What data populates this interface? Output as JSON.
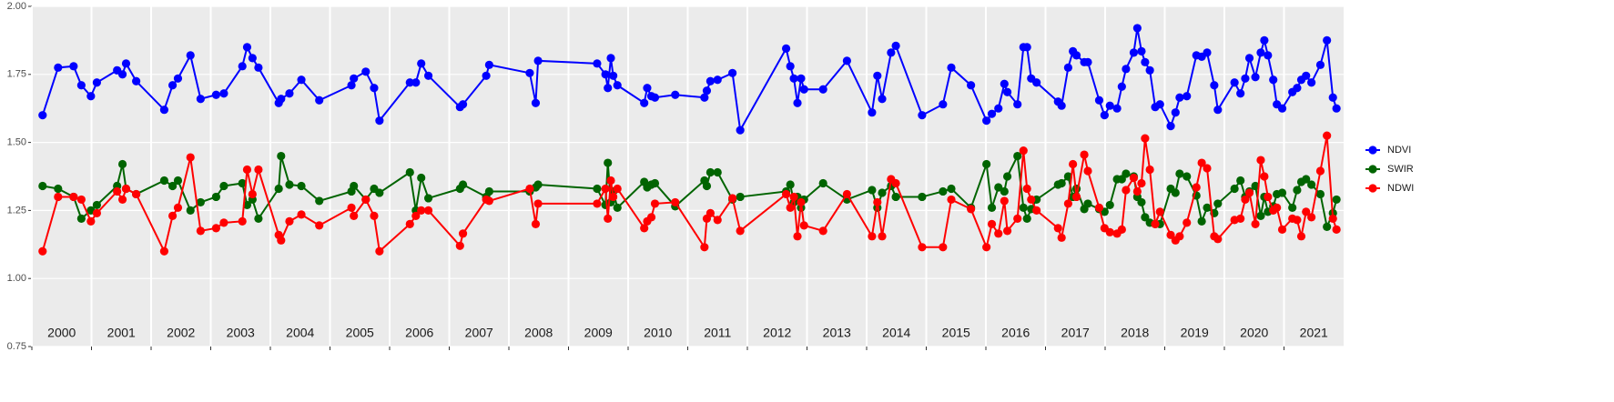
{
  "chart_data": {
    "type": "line",
    "x": [
      2000.18,
      2000.44,
      2000.7,
      2000.83,
      2000.99,
      2001.09,
      2001.43,
      2001.52,
      2001.58,
      2001.75,
      2002.22,
      2002.36,
      2002.45,
      2002.66,
      2002.83,
      2003.09,
      2003.22,
      2003.53,
      2003.61,
      2003.7,
      2003.8,
      2004.14,
      2004.18,
      2004.32,
      2004.52,
      2004.82,
      2005.36,
      2005.4,
      2005.6,
      2005.74,
      2005.83,
      2006.34,
      2006.44,
      2006.53,
      2006.65,
      2007.18,
      2007.23,
      2007.62,
      2007.67,
      2008.35,
      2008.45,
      2008.49,
      2009.48,
      2009.62,
      2009.66,
      2009.71,
      2009.75,
      2009.82,
      2010.27,
      2010.32,
      2010.39,
      2010.45,
      2010.79,
      2011.28,
      2011.32,
      2011.38,
      2011.5,
      2011.75,
      2011.88,
      2012.65,
      2012.72,
      2012.78,
      2012.84,
      2012.9,
      2012.95,
      2013.27,
      2013.67,
      2014.09,
      2014.18,
      2014.26,
      2014.41,
      2014.49,
      2014.93,
      2015.28,
      2015.42,
      2015.75,
      2016.01,
      2016.1,
      2016.21,
      2016.31,
      2016.36,
      2016.53,
      2016.63,
      2016.69,
      2016.76,
      2016.85,
      2017.21,
      2017.27,
      2017.38,
      2017.46,
      2017.52,
      2017.65,
      2017.71,
      2017.9,
      2017.99,
      2018.08,
      2018.2,
      2018.28,
      2018.35,
      2018.48,
      2018.54,
      2018.61,
      2018.67,
      2018.75,
      2018.84,
      2018.92,
      2019.1,
      2019.18,
      2019.25,
      2019.37,
      2019.53,
      2019.62,
      2019.71,
      2019.83,
      2019.89,
      2020.17,
      2020.27,
      2020.35,
      2020.42,
      2020.52,
      2020.61,
      2020.67,
      2020.73,
      2020.82,
      2020.88,
      2020.97,
      2021.14,
      2021.22,
      2021.29,
      2021.37,
      2021.46,
      2021.61,
      2021.72,
      2021.82,
      2021.88
    ],
    "series": [
      {
        "name": "NDVI",
        "color": "#0000ff",
        "values": [
          1.6,
          1.775,
          1.78,
          1.71,
          1.67,
          1.72,
          1.765,
          1.75,
          1.79,
          1.725,
          1.62,
          1.71,
          1.735,
          1.82,
          1.66,
          1.675,
          1.68,
          1.78,
          1.85,
          1.81,
          1.775,
          1.645,
          1.66,
          1.68,
          1.73,
          1.655,
          1.71,
          1.735,
          1.76,
          1.7,
          1.58,
          1.72,
          1.72,
          1.79,
          1.745,
          1.63,
          1.64,
          1.745,
          1.785,
          1.755,
          1.645,
          1.8,
          1.79,
          1.75,
          1.7,
          1.81,
          1.745,
          1.71,
          1.645,
          1.7,
          1.67,
          1.665,
          1.675,
          1.665,
          1.69,
          1.725,
          1.73,
          1.755,
          1.545,
          1.845,
          1.78,
          1.735,
          1.645,
          1.735,
          1.695,
          1.695,
          1.8,
          1.61,
          1.745,
          1.66,
          1.83,
          1.855,
          1.6,
          1.64,
          1.775,
          1.71,
          1.58,
          1.605,
          1.625,
          1.715,
          1.685,
          1.64,
          1.85,
          1.85,
          1.735,
          1.72,
          1.65,
          1.635,
          1.775,
          1.835,
          1.82,
          1.795,
          1.795,
          1.655,
          1.6,
          1.635,
          1.625,
          1.705,
          1.77,
          1.83,
          1.92,
          1.835,
          1.795,
          1.765,
          1.63,
          1.64,
          1.56,
          1.61,
          1.665,
          1.67,
          1.82,
          1.815,
          1.83,
          1.71,
          1.62,
          1.72,
          1.68,
          1.735,
          1.81,
          1.74,
          1.83,
          1.875,
          1.82,
          1.73,
          1.64,
          1.625,
          1.685,
          1.7,
          1.73,
          1.745,
          1.72,
          1.785,
          1.875,
          1.665,
          1.625
        ]
      },
      {
        "name": "SWIR",
        "color": "#006400",
        "values": [
          1.34,
          1.33,
          1.3,
          1.22,
          1.25,
          1.27,
          1.34,
          1.42,
          1.33,
          1.31,
          1.36,
          1.34,
          1.36,
          1.25,
          1.28,
          1.3,
          1.34,
          1.35,
          1.27,
          1.29,
          1.22,
          1.33,
          1.45,
          1.345,
          1.34,
          1.285,
          1.32,
          1.34,
          1.29,
          1.33,
          1.315,
          1.39,
          1.25,
          1.37,
          1.295,
          1.33,
          1.345,
          1.3,
          1.32,
          1.32,
          1.335,
          1.345,
          1.33,
          1.27,
          1.425,
          1.28,
          1.32,
          1.26,
          1.355,
          1.335,
          1.345,
          1.35,
          1.265,
          1.36,
          1.34,
          1.39,
          1.39,
          1.29,
          1.3,
          1.32,
          1.345,
          1.28,
          1.3,
          1.26,
          1.29,
          1.35,
          1.29,
          1.325,
          1.26,
          1.315,
          1.34,
          1.3,
          1.3,
          1.32,
          1.33,
          1.26,
          1.42,
          1.26,
          1.335,
          1.32,
          1.375,
          1.45,
          1.26,
          1.22,
          1.255,
          1.29,
          1.345,
          1.35,
          1.375,
          1.3,
          1.33,
          1.255,
          1.275,
          1.255,
          1.245,
          1.27,
          1.365,
          1.365,
          1.385,
          1.375,
          1.3,
          1.28,
          1.225,
          1.205,
          1.2,
          1.2,
          1.33,
          1.315,
          1.385,
          1.375,
          1.305,
          1.21,
          1.26,
          1.24,
          1.275,
          1.33,
          1.36,
          1.3,
          1.32,
          1.34,
          1.23,
          1.3,
          1.245,
          1.265,
          1.31,
          1.315,
          1.26,
          1.325,
          1.355,
          1.365,
          1.345,
          1.31,
          1.19,
          1.24,
          1.29
        ]
      },
      {
        "name": "NDWI",
        "color": "#ff0000",
        "values": [
          1.1,
          1.3,
          1.3,
          1.29,
          1.21,
          1.24,
          1.32,
          1.29,
          1.33,
          1.31,
          1.1,
          1.23,
          1.26,
          1.445,
          1.175,
          1.185,
          1.205,
          1.21,
          1.4,
          1.31,
          1.4,
          1.16,
          1.14,
          1.21,
          1.235,
          1.195,
          1.26,
          1.23,
          1.29,
          1.23,
          1.1,
          1.2,
          1.23,
          1.25,
          1.25,
          1.12,
          1.165,
          1.29,
          1.285,
          1.33,
          1.2,
          1.275,
          1.275,
          1.33,
          1.22,
          1.36,
          1.3,
          1.33,
          1.185,
          1.21,
          1.225,
          1.275,
          1.28,
          1.115,
          1.22,
          1.24,
          1.215,
          1.295,
          1.175,
          1.31,
          1.26,
          1.3,
          1.155,
          1.28,
          1.195,
          1.175,
          1.31,
          1.155,
          1.28,
          1.155,
          1.365,
          1.35,
          1.115,
          1.115,
          1.29,
          1.255,
          1.115,
          1.2,
          1.165,
          1.285,
          1.175,
          1.22,
          1.47,
          1.33,
          1.29,
          1.25,
          1.185,
          1.15,
          1.275,
          1.42,
          1.3,
          1.455,
          1.395,
          1.26,
          1.185,
          1.17,
          1.165,
          1.18,
          1.325,
          1.37,
          1.32,
          1.35,
          1.515,
          1.4,
          1.2,
          1.245,
          1.16,
          1.14,
          1.155,
          1.205,
          1.335,
          1.425,
          1.405,
          1.155,
          1.145,
          1.215,
          1.22,
          1.29,
          1.315,
          1.2,
          1.435,
          1.375,
          1.3,
          1.25,
          1.26,
          1.18,
          1.22,
          1.215,
          1.155,
          1.245,
          1.225,
          1.395,
          1.525,
          1.22,
          1.18
        ]
      }
    ],
    "xlim": [
      2000,
      2022
    ],
    "xticks": [
      2000,
      2001,
      2002,
      2003,
      2004,
      2005,
      2006,
      2007,
      2008,
      2009,
      2010,
      2011,
      2012,
      2013,
      2014,
      2015,
      2016,
      2017,
      2018,
      2019,
      2020,
      2021
    ],
    "year_labels": [
      {
        "value": 2000.5,
        "label": "2000"
      },
      {
        "value": 2001.5,
        "label": "2001"
      },
      {
        "value": 2002.5,
        "label": "2002"
      },
      {
        "value": 2003.5,
        "label": "2003"
      },
      {
        "value": 2004.5,
        "label": "2004"
      },
      {
        "value": 2005.5,
        "label": "2005"
      },
      {
        "value": 2006.5,
        "label": "2006"
      },
      {
        "value": 2007.5,
        "label": "2007"
      },
      {
        "value": 2008.5,
        "label": "2008"
      },
      {
        "value": 2009.5,
        "label": "2009"
      },
      {
        "value": 2010.5,
        "label": "2010"
      },
      {
        "value": 2011.5,
        "label": "2011"
      },
      {
        "value": 2012.5,
        "label": "2012"
      },
      {
        "value": 2013.5,
        "label": "2013"
      },
      {
        "value": 2014.5,
        "label": "2014"
      },
      {
        "value": 2015.5,
        "label": "2015"
      },
      {
        "value": 2016.5,
        "label": "2016"
      },
      {
        "value": 2017.5,
        "label": "2017"
      },
      {
        "value": 2018.5,
        "label": "2018"
      },
      {
        "value": 2019.5,
        "label": "2019"
      },
      {
        "value": 2020.5,
        "label": "2020"
      },
      {
        "value": 2021.5,
        "label": "2021"
      }
    ],
    "ylim": [
      0.75,
      2.0
    ],
    "yticks": [
      {
        "value": 0.75,
        "label": "0.75"
      },
      {
        "value": 1.0,
        "label": "1.00"
      },
      {
        "value": 1.25,
        "label": "1.25"
      },
      {
        "value": 1.5,
        "label": "1.50"
      },
      {
        "value": 1.75,
        "label": "1.75"
      },
      {
        "value": 2.0,
        "label": "2.00"
      }
    ],
    "grid": true,
    "legend": "right"
  }
}
